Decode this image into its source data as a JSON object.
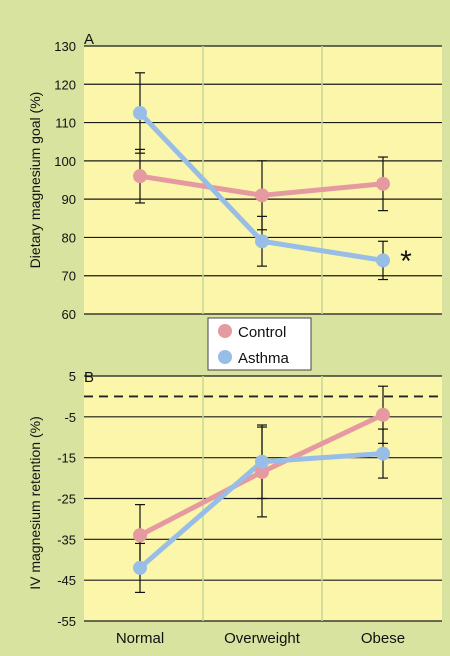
{
  "colors": {
    "background": "#d7e39f",
    "plot_area": "#fcf6aa",
    "control": "#e49aa0",
    "asthma": "#98bde6",
    "separator": "#c3d79a"
  },
  "legend": {
    "position": "between-panels",
    "entries": [
      "Control",
      "Asthma"
    ]
  },
  "chart_data": [
    {
      "panel": "A",
      "type": "line",
      "ylabel": "Dietary magnesium goal (%)",
      "ylim": [
        60,
        130
      ],
      "yticks": [
        130,
        120,
        110,
        100,
        90,
        80,
        70,
        60
      ],
      "categories": [
        "Normal",
        "Overweight",
        "Obese"
      ],
      "grid": "horizontal",
      "series": [
        {
          "name": "Control",
          "values": [
            96,
            91,
            94
          ],
          "error": [
            7,
            9,
            7
          ]
        },
        {
          "name": "Asthma",
          "values": [
            112.5,
            79,
            74
          ],
          "error": [
            10.5,
            6.5,
            5
          ]
        }
      ],
      "annotation": "*"
    },
    {
      "panel": "B",
      "type": "line",
      "ylabel": "IV magnesium retention (%)",
      "ylim": [
        -55,
        5
      ],
      "yticks": [
        5,
        -5,
        -15,
        -25,
        -35,
        -45,
        -55
      ],
      "reference_line": 0,
      "categories": [
        "Normal",
        "Overweight",
        "Obese"
      ],
      "grid": "horizontal",
      "series": [
        {
          "name": "Control",
          "values": [
            -34,
            -18.5,
            -4.5
          ],
          "error": [
            7.5,
            11,
            7
          ]
        },
        {
          "name": "Asthma",
          "values": [
            -42,
            -16,
            -14
          ],
          "error": [
            6,
            9,
            6
          ]
        }
      ]
    }
  ]
}
